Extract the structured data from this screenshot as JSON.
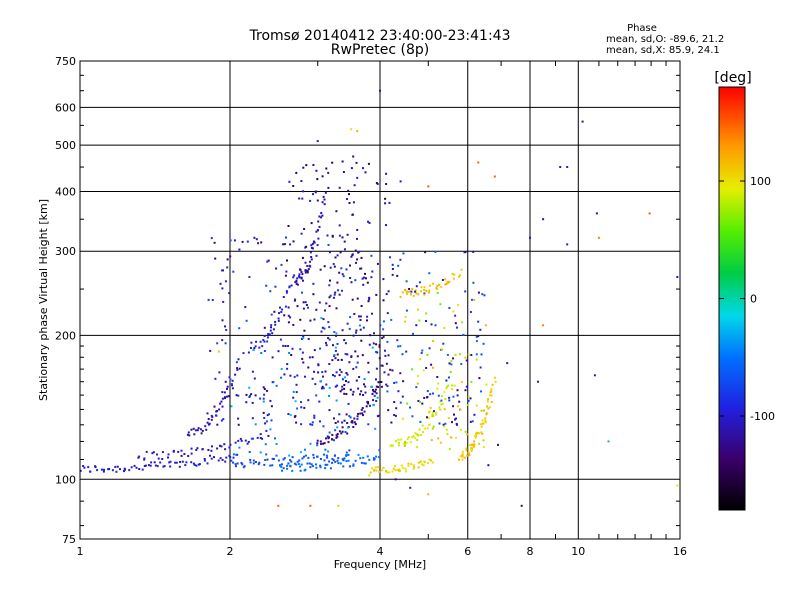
{
  "chart_data": {
    "type": "scatter",
    "title": "Tromsø 20140412 23:40:00-23:41:43",
    "subtitle": "RwPretec (8p)",
    "xlabel": "Frequency [MHz]",
    "ylabel": "Stationary phase Virtual Height [km]",
    "x_scale": "log",
    "y_scale": "log",
    "xlim": [
      1,
      16
    ],
    "ylim": [
      75,
      750
    ],
    "x_ticks": [
      {
        "value": 1,
        "label": "1"
      },
      {
        "value": 2,
        "label": "2"
      },
      {
        "value": 4,
        "label": "4"
      },
      {
        "value": 6,
        "label": "6"
      },
      {
        "value": 8,
        "label": "8"
      },
      {
        "value": 10,
        "label": "10"
      },
      {
        "value": 16,
        "label": "16"
      }
    ],
    "y_ticks": [
      {
        "value": 75,
        "label": "75"
      },
      {
        "value": 100,
        "label": "100"
      },
      {
        "value": 200,
        "label": "200"
      },
      {
        "value": 300,
        "label": "300"
      },
      {
        "value": 400,
        "label": "400"
      },
      {
        "value": 500,
        "label": "500"
      },
      {
        "value": 600,
        "label": "600"
      },
      {
        "value": 750,
        "label": "750"
      }
    ],
    "grid": true,
    "stats": {
      "heading": "Phase",
      "line_o": "mean, sd,O: -89.6, 21.2",
      "line_x": "mean, sd,X:  85.9, 24.1"
    },
    "colorbar": {
      "label": "[deg]",
      "range": [
        -180,
        180
      ],
      "ticks": [
        {
          "value": 100,
          "label": "100"
        },
        {
          "value": 0,
          "label": "0"
        },
        {
          "value": -100,
          "label": "-100"
        }
      ]
    },
    "traces": [
      {
        "x_range": [
          1.0,
          2.05
        ],
        "y_range": [
          105,
          112
        ],
        "color": -100,
        "n": 70
      },
      {
        "x_range": [
          1.3,
          2.4
        ],
        "y_range": [
          112,
          125
        ],
        "color": -105,
        "n": 50
      },
      {
        "x_range": [
          1.65,
          2.1
        ],
        "y_range": [
          125,
          175
        ],
        "color": -110,
        "n": 40
      },
      {
        "x_range": [
          2.0,
          3.5
        ],
        "y_range": [
          108,
          113
        ],
        "color": -70,
        "n": 60
      },
      {
        "x_range": [
          2.5,
          4.0
        ],
        "y_range": [
          106,
          111
        ],
        "color": -55,
        "n": 55
      },
      {
        "x_range": [
          3.0,
          4.0
        ],
        "y_range": [
          120,
          160
        ],
        "color": -125,
        "n": 50
      },
      {
        "x_range": [
          3.8,
          5.1
        ],
        "y_range": [
          104,
          109
        ],
        "color": 105,
        "n": 45
      },
      {
        "x_range": [
          4.2,
          5.6
        ],
        "y_range": [
          118,
          160
        ],
        "color": 90,
        "n": 50
      },
      {
        "x_range": [
          5.8,
          6.8
        ],
        "y_range": [
          112,
          160
        ],
        "color": 110,
        "n": 60
      },
      {
        "x_range": [
          4.4,
          5.8
        ],
        "y_range": [
          245,
          270
        ],
        "color": 115,
        "n": 40
      },
      {
        "x_range": [
          2.2,
          2.7
        ],
        "y_range": [
          190,
          270
        ],
        "color": -95,
        "n": 35
      },
      {
        "x_range": [
          2.7,
          3.1
        ],
        "y_range": [
          260,
          390
        ],
        "color": -110,
        "n": 45
      }
    ],
    "scatter_clouds": [
      {
        "x_range": [
          1.8,
          4.0
        ],
        "y_range": [
          130,
          330
        ],
        "color_range": [
          -140,
          -70
        ],
        "n": 260
      },
      {
        "x_range": [
          2.6,
          4.2
        ],
        "y_range": [
          150,
          480
        ],
        "color_range": [
          -150,
          -95
        ],
        "n": 200
      },
      {
        "x_range": [
          4.0,
          6.5
        ],
        "y_range": [
          130,
          300
        ],
        "color_range": [
          -140,
          -50
        ],
        "n": 140
      },
      {
        "x_range": [
          4.4,
          6.6
        ],
        "y_range": [
          115,
          250
        ],
        "color_range": [
          60,
          125
        ],
        "n": 80
      },
      {
        "x_range": [
          2.0,
          4.0
        ],
        "y_range": [
          112,
          220
        ],
        "color_range": [
          -70,
          -20
        ],
        "n": 70
      }
    ],
    "outliers": [
      {
        "x": 4.0,
        "y": 650,
        "color": -110
      },
      {
        "x": 10.2,
        "y": 560,
        "color": -110
      },
      {
        "x": 9.2,
        "y": 450,
        "color": -110
      },
      {
        "x": 9.5,
        "y": 450,
        "color": -100
      },
      {
        "x": 8.0,
        "y": 320,
        "color": -110
      },
      {
        "x": 8.5,
        "y": 350,
        "color": -120
      },
      {
        "x": 10.9,
        "y": 360,
        "color": -110
      },
      {
        "x": 13.9,
        "y": 360,
        "color": 150
      },
      {
        "x": 11.0,
        "y": 320,
        "color": 140
      },
      {
        "x": 9.5,
        "y": 310,
        "color": -100
      },
      {
        "x": 15.8,
        "y": 265,
        "color": -100
      },
      {
        "x": 8.5,
        "y": 210,
        "color": 140
      },
      {
        "x": 10.8,
        "y": 165,
        "color": -110
      },
      {
        "x": 8.3,
        "y": 160,
        "color": -100
      },
      {
        "x": 7.2,
        "y": 175,
        "color": -100
      },
      {
        "x": 11.5,
        "y": 120,
        "color": 10
      },
      {
        "x": 6.9,
        "y": 118,
        "color": -120
      },
      {
        "x": 6.6,
        "y": 107,
        "color": -120
      },
      {
        "x": 7.7,
        "y": 88,
        "color": -130
      },
      {
        "x": 4.6,
        "y": 96,
        "color": -100
      },
      {
        "x": 5.0,
        "y": 93,
        "color": 120
      },
      {
        "x": 3.3,
        "y": 88,
        "color": 110
      },
      {
        "x": 2.5,
        "y": 88,
        "color": 150
      },
      {
        "x": 2.9,
        "y": 88,
        "color": 150
      },
      {
        "x": 4.3,
        "y": 100,
        "color": -120
      },
      {
        "x": 15.8,
        "y": 97,
        "color": 100
      },
      {
        "x": 3.6,
        "y": 535,
        "color": 120
      },
      {
        "x": 3.0,
        "y": 510,
        "color": -100
      },
      {
        "x": 6.3,
        "y": 460,
        "color": 150
      },
      {
        "x": 6.8,
        "y": 430,
        "color": 150
      },
      {
        "x": 4.4,
        "y": 420,
        "color": -110
      },
      {
        "x": 5.0,
        "y": 410,
        "color": 150
      },
      {
        "x": 1.9,
        "y": 185,
        "color": 110
      },
      {
        "x": 3.5,
        "y": 540,
        "color": 100
      }
    ]
  }
}
